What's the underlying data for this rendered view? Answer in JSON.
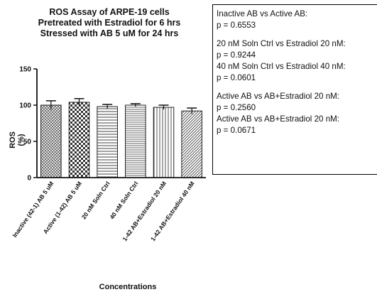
{
  "chart_data": {
    "type": "bar",
    "title_lines": [
      "ROS Assay of ARPE-19 cells",
      "Pretreated with Estradiol for 6 hrs",
      "Stressed with AB 5 uM for 24 hrs"
    ],
    "xlabel": "Concentrations",
    "ylabel": "ROS (%)",
    "ylim": [
      0,
      150
    ],
    "yticks": [
      "0",
      "50",
      "100",
      "150"
    ],
    "categories": [
      "Inactive (42-1) AB 5 uM",
      "Active (1-42) AB 5 uM",
      "20 nM Soln Ctrl",
      "40 nM Soln Ctrl",
      "1-42 AB+Estradiol 20 nM",
      "1-42 AB+Estradiol 40 nM"
    ],
    "values": [
      100,
      104,
      98,
      100,
      97,
      92
    ],
    "errors": [
      6,
      5,
      3,
      2,
      3,
      4
    ],
    "patterns": [
      "crosshatch-dense",
      "checker",
      "horizontal",
      "horizontal-dense",
      "vertical",
      "diagonal"
    ]
  },
  "stats": [
    {
      "comparison": "Inactive AB vs Active AB:",
      "p": "p = 0.6553"
    },
    {
      "comparison": "20 nM Soln Ctrl vs Estradiol 20 nM:",
      "p": "p = 0.9244"
    },
    {
      "comparison": "40 nM Soln Ctrl vs Estradiol 40 nM:",
      "p": "p = 0.0601"
    },
    {
      "comparison": "Active AB vs AB+Estradiol 20 nM:",
      "p": "p = 0.2560"
    },
    {
      "comparison": "Active AB vs AB+Estradiol 20 nM:",
      "p": "p = 0.0671"
    }
  ]
}
